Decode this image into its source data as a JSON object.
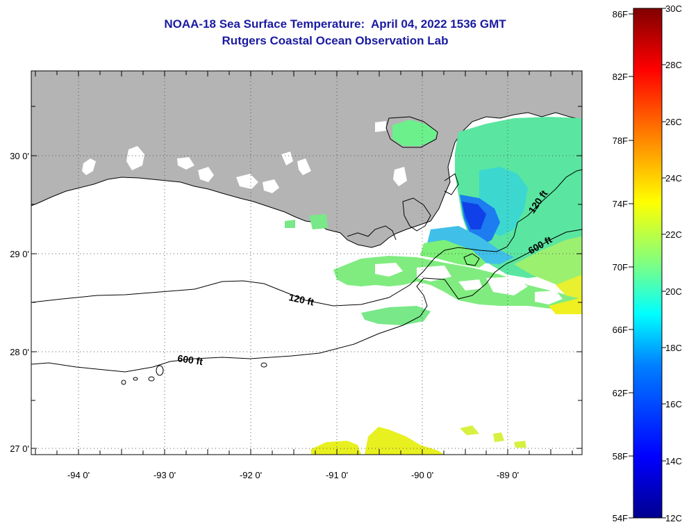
{
  "title": {
    "line1": "NOAA-18 Sea Surface Temperature:  April 04, 2022 1536 GMT",
    "line2": "Rutgers Coastal Ocean Observation Lab"
  },
  "axes": {
    "lon_labels": [
      "-94 0'",
      "-93 0'",
      "-92 0'",
      "-91 0'",
      "-90 0'",
      "-89 0'"
    ],
    "lat_labels": [
      "30 0'",
      "29 0'",
      "28 0'",
      "27 0'"
    ]
  },
  "contours": {
    "label_120_west": "120 ft",
    "label_600_west": "600 ft",
    "label_120_east": "120 ft",
    "label_600_east": "600 ft"
  },
  "colorbar": {
    "fahrenheit_labels": [
      "86F",
      "82F",
      "78F",
      "74F",
      "70F",
      "66F",
      "62F",
      "58F",
      "54F"
    ],
    "celsius_labels": [
      "30C",
      "28C",
      "26C",
      "24C",
      "22C",
      "20C",
      "18C",
      "16C",
      "14C",
      "12C"
    ]
  },
  "colors": {
    "land": "#b4b4b4",
    "title": "#1a1aa0",
    "colormap": [
      "#00008f",
      "#0000ff",
      "#0080ff",
      "#00ffff",
      "#80ff80",
      "#ffff00",
      "#ff8000",
      "#ff0000",
      "#800000"
    ]
  }
}
